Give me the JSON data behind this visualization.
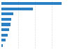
{
  "values": [
    285,
    150,
    58,
    48,
    42,
    36,
    30,
    20,
    7
  ],
  "bar_color": "#2980c4",
  "background_color": "#ffffff",
  "grid_color": "#dddddd",
  "bar_height": 0.55,
  "xlim": [
    0,
    320
  ],
  "grid_values": [
    80,
    160,
    240,
    320
  ]
}
